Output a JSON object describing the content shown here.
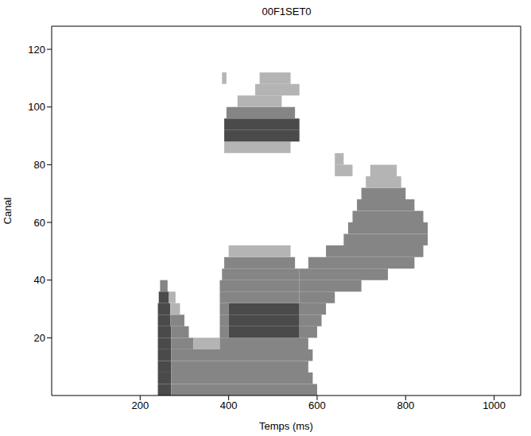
{
  "chart_data": {
    "type": "heatmap",
    "title": "00F1SET0",
    "x_label": "Temps (ms)",
    "y_label": "Canal",
    "xlim": [
      0,
      1060
    ],
    "ylim": [
      0,
      128
    ],
    "xticks": [
      200,
      400,
      600,
      800,
      1000
    ],
    "yticks": [
      20,
      40,
      60,
      80,
      100,
      120
    ],
    "row_height": 4,
    "rows": [
      {
        "y": 0,
        "runs": [
          [
            240,
            270,
            3
          ],
          [
            270,
            600,
            2
          ]
        ]
      },
      {
        "y": 4,
        "runs": [
          [
            240,
            270,
            3
          ],
          [
            270,
            590,
            2
          ]
        ]
      },
      {
        "y": 8,
        "runs": [
          [
            240,
            270,
            3
          ],
          [
            270,
            580,
            2
          ]
        ]
      },
      {
        "y": 12,
        "runs": [
          [
            240,
            270,
            3
          ],
          [
            270,
            590,
            2
          ]
        ]
      },
      {
        "y": 16,
        "runs": [
          [
            240,
            270,
            3
          ],
          [
            270,
            320,
            2
          ],
          [
            320,
            380,
            1
          ],
          [
            380,
            580,
            2
          ]
        ]
      },
      {
        "y": 20,
        "runs": [
          [
            240,
            270,
            3
          ],
          [
            270,
            310,
            2
          ],
          [
            380,
            400,
            2
          ],
          [
            400,
            560,
            3
          ],
          [
            560,
            600,
            2
          ]
        ]
      },
      {
        "y": 24,
        "runs": [
          [
            240,
            268,
            3
          ],
          [
            268,
            300,
            2
          ],
          [
            380,
            400,
            2
          ],
          [
            400,
            560,
            3
          ],
          [
            560,
            610,
            2
          ]
        ]
      },
      {
        "y": 28,
        "runs": [
          [
            240,
            268,
            3
          ],
          [
            268,
            290,
            1
          ],
          [
            380,
            400,
            2
          ],
          [
            400,
            560,
            3
          ],
          [
            560,
            620,
            2
          ]
        ]
      },
      {
        "y": 32,
        "runs": [
          [
            242,
            265,
            3
          ],
          [
            265,
            280,
            1
          ],
          [
            380,
            560,
            2
          ],
          [
            560,
            640,
            2
          ]
        ]
      },
      {
        "y": 36,
        "runs": [
          [
            245,
            262,
            2
          ],
          [
            380,
            560,
            2
          ],
          [
            560,
            700,
            2
          ]
        ]
      },
      {
        "y": 40,
        "runs": [
          [
            385,
            560,
            2
          ],
          [
            560,
            760,
            2
          ]
        ]
      },
      {
        "y": 44,
        "runs": [
          [
            390,
            550,
            2
          ],
          [
            580,
            820,
            2
          ]
        ]
      },
      {
        "y": 48,
        "runs": [
          [
            400,
            540,
            1
          ],
          [
            620,
            840,
            2
          ]
        ]
      },
      {
        "y": 52,
        "runs": [
          [
            660,
            850,
            2
          ]
        ]
      },
      {
        "y": 56,
        "runs": [
          [
            670,
            850,
            2
          ]
        ]
      },
      {
        "y": 60,
        "runs": [
          [
            680,
            840,
            2
          ]
        ]
      },
      {
        "y": 64,
        "runs": [
          [
            690,
            820,
            2
          ]
        ]
      },
      {
        "y": 68,
        "runs": [
          [
            700,
            800,
            2
          ]
        ]
      },
      {
        "y": 72,
        "runs": [
          [
            710,
            790,
            1
          ]
        ]
      },
      {
        "y": 76,
        "runs": [
          [
            640,
            680,
            1
          ],
          [
            720,
            780,
            1
          ]
        ]
      },
      {
        "y": 80,
        "runs": [
          [
            640,
            660,
            1
          ]
        ]
      },
      {
        "y": 84,
        "runs": [
          [
            390,
            540,
            1
          ]
        ]
      },
      {
        "y": 88,
        "runs": [
          [
            390,
            560,
            3
          ]
        ]
      },
      {
        "y": 92,
        "runs": [
          [
            390,
            560,
            3
          ]
        ]
      },
      {
        "y": 96,
        "runs": [
          [
            395,
            550,
            2
          ]
        ]
      },
      {
        "y": 100,
        "runs": [
          [
            420,
            520,
            1
          ]
        ]
      },
      {
        "y": 104,
        "runs": [
          [
            460,
            560,
            1
          ]
        ]
      },
      {
        "y": 108,
        "runs": [
          [
            385,
            395,
            1
          ],
          [
            470,
            540,
            1
          ]
        ]
      }
    ]
  }
}
